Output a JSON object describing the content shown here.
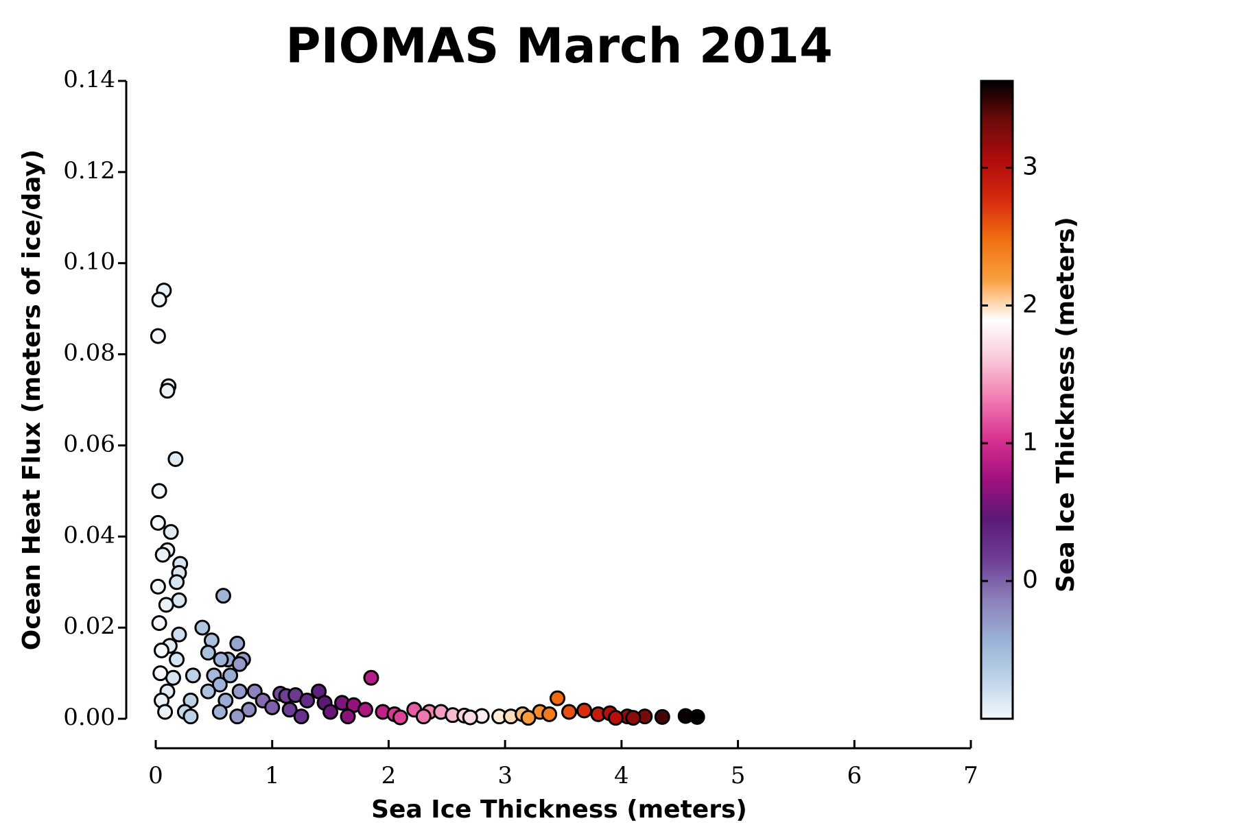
{
  "chart_data": {
    "type": "scatter",
    "title": "PIOMAS March 2014",
    "xlabel": "Sea Ice Thickness (meters)",
    "ylabel": "Ocean Heat Flux (meters of ice/day)",
    "colorbar_label": "Sea Ice Thickness (meters)",
    "xlim": [
      0,
      7
    ],
    "xticks": [
      0,
      1,
      2,
      3,
      4,
      5,
      6,
      7
    ],
    "ylim": [
      0,
      0.14
    ],
    "yticks": [
      {
        "value": 0,
        "label": "0.00"
      },
      {
        "value": 0.02,
        "label": "0.02"
      },
      {
        "value": 0.04,
        "label": "0.04"
      },
      {
        "value": 0.06,
        "label": "0.06"
      },
      {
        "value": 0.08,
        "label": "0.08"
      },
      {
        "value": 0.1,
        "label": "0.10"
      },
      {
        "value": 0.12,
        "label": "0.12"
      },
      {
        "value": 0.14,
        "label": "0.14"
      }
    ],
    "clim": [
      -1.0,
      3.63
    ],
    "cticks": [
      0,
      1,
      2,
      3
    ],
    "colormap": [
      "#f4f8fb",
      "#bcd3e8",
      "#9ab0d6",
      "#8c7fb8",
      "#6e3d96",
      "#5a1a78",
      "#a0107e",
      "#d8308f",
      "#f07ab0",
      "#f8c8d8",
      "#ffffff",
      "#f8a040",
      "#f07010",
      "#d82a10",
      "#b00c0c",
      "#6e0a0a",
      "#000000"
    ],
    "grid": false,
    "x": [
      0.07,
      0.03,
      0.02,
      0.11,
      0.1,
      0.17,
      0.03,
      0.13,
      0.02,
      0.1,
      0.06,
      0.21,
      0.2,
      0.18,
      0.02,
      0.58,
      0.2,
      0.09,
      0.03,
      0.4,
      0.2,
      0.7,
      0.48,
      0.45,
      0.75,
      0.62,
      0.56,
      0.72,
      0.12,
      0.05,
      0.18,
      0.64,
      0.5,
      0.32,
      0.15,
      0.04,
      0.55,
      0.85,
      0.72,
      0.45,
      0.1,
      0.92,
      0.6,
      0.3,
      0.05,
      1.07,
      1.12,
      1.2,
      1.4,
      1.3,
      1.45,
      1.6,
      1.7,
      1.85,
      1.8,
      1.0,
      0.8,
      0.55,
      0.25,
      0.08,
      1.15,
      1.5,
      1.95,
      2.05,
      2.22,
      2.35,
      2.45,
      2.3,
      2.55,
      2.65,
      2.8,
      2.95,
      3.05,
      3.15,
      3.3,
      3.38,
      3.45,
      3.55,
      3.68,
      3.8,
      3.9,
      4.05,
      4.2,
      4.35,
      4.55,
      4.65,
      0.3,
      0.7,
      1.25,
      1.65,
      2.1,
      2.7,
      3.2,
      3.95,
      4.1
    ],
    "values": [
      0.094,
      0.092,
      0.084,
      0.073,
      0.072,
      0.057,
      0.05,
      0.041,
      0.043,
      0.037,
      0.036,
      0.034,
      0.032,
      0.03,
      0.029,
      0.027,
      0.026,
      0.025,
      0.021,
      0.02,
      0.0185,
      0.0165,
      0.0172,
      0.0145,
      0.013,
      0.013,
      0.013,
      0.012,
      0.016,
      0.015,
      0.013,
      0.0095,
      0.0095,
      0.0095,
      0.009,
      0.01,
      0.0075,
      0.006,
      0.006,
      0.006,
      0.006,
      0.004,
      0.004,
      0.004,
      0.004,
      0.0055,
      0.005,
      0.0052,
      0.006,
      0.004,
      0.0035,
      0.0035,
      0.003,
      0.009,
      0.002,
      0.0025,
      0.002,
      0.0015,
      0.0015,
      0.0015,
      0.002,
      0.0015,
      0.0015,
      0.001,
      0.002,
      0.0015,
      0.0015,
      0.0005,
      0.0008,
      0.0007,
      0.0006,
      0.0005,
      0.0005,
      0.001,
      0.0015,
      0.001,
      0.0045,
      0.0015,
      0.0018,
      0.001,
      0.0012,
      0.0005,
      0.0005,
      0.0004,
      0.0006,
      0.0004,
      0.0005,
      0.0005,
      0.0005,
      0.0005,
      0.0003,
      0.0003,
      0.0002,
      0.0002,
      0.0002
    ],
    "color_values": [
      -0.95,
      -1,
      -1,
      -0.95,
      -0.95,
      -0.9,
      -1,
      -0.9,
      -1,
      -0.95,
      -0.95,
      -0.85,
      -0.85,
      -0.85,
      -1,
      -0.45,
      -0.85,
      -0.95,
      -1,
      -0.6,
      -0.8,
      -0.35,
      -0.55,
      -0.55,
      -0.3,
      -0.4,
      -0.45,
      -0.3,
      -0.9,
      -1,
      -0.85,
      -0.4,
      -0.5,
      -0.7,
      -0.85,
      -1,
      -0.45,
      -0.15,
      -0.3,
      -0.55,
      -0.9,
      -0.05,
      -0.4,
      -0.7,
      -0.95,
      0.1,
      0.15,
      0.2,
      0.4,
      0.3,
      0.45,
      0.6,
      0.7,
      0.85,
      0.8,
      0.0,
      -0.2,
      -0.45,
      -0.75,
      -0.95,
      0.15,
      0.5,
      0.9,
      1.05,
      1.2,
      1.35,
      1.45,
      1.3,
      1.55,
      1.65,
      1.8,
      1.95,
      2.0,
      2.1,
      2.3,
      2.4,
      2.5,
      2.6,
      2.75,
      2.9,
      3.0,
      3.15,
      3.3,
      3.45,
      3.6,
      3.63,
      -0.7,
      -0.3,
      0.25,
      0.65,
      1.1,
      1.7,
      2.2,
      3.0,
      3.2
    ]
  }
}
